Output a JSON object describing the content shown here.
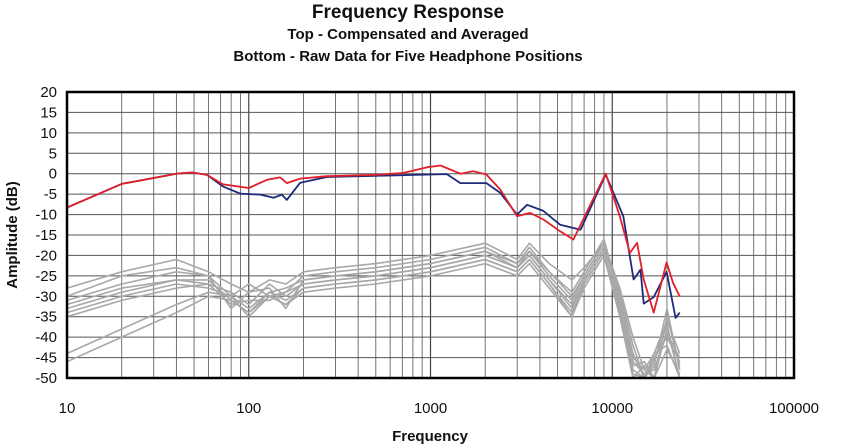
{
  "chart_data": {
    "type": "line",
    "title": "Frequency Response",
    "subtitle": [
      "Top -  Compensated and Averaged",
      "Bottom - Raw Data for Five Headphone Positions"
    ],
    "xlabel": "Frequency",
    "ylabel": "Amplitude (dB)",
    "xscale": "log",
    "xlim": [
      10,
      100000
    ],
    "ylim": [
      -50,
      20
    ],
    "xticks": [
      "10",
      "100",
      "1000",
      "10000",
      "100000"
    ],
    "yticks": [
      "20",
      "15",
      "10",
      "5",
      "0",
      "-5",
      "-10",
      "-15",
      "-20",
      "-25",
      "-30",
      "-35",
      "-40",
      "-45",
      "-50"
    ],
    "grid": true,
    "legend": "none",
    "series": [
      {
        "color": "#1f2a7a",
        "x": [
          10,
          20,
          40,
          49,
          59,
          72,
          90,
          116,
          137,
          152,
          162,
          192,
          269,
          500,
          1000,
          1230,
          1460,
          2030,
          2420,
          2990,
          3400,
          4180,
          5170,
          6700,
          9200,
          11500,
          13100,
          14300,
          14900,
          16900,
          19900,
          22300,
          23500
        ],
        "y": [
          -8.3,
          -2.5,
          0,
          0.3,
          -0.3,
          -3.1,
          -4.9,
          -5.1,
          -5.9,
          -5.1,
          -6.4,
          -2.2,
          -0.8,
          -0.5,
          -0.2,
          -0.1,
          -2.3,
          -2.3,
          -4.7,
          -10,
          -7.6,
          -9.1,
          -12.5,
          -13.7,
          -0.2,
          -10.4,
          -25.9,
          -23.5,
          -31.8,
          -30.2,
          -24,
          -35.3,
          -34
        ]
      },
      {
        "color": "#e0202a",
        "x": [
          10,
          20,
          40,
          49,
          59,
          72,
          100,
          126,
          149,
          162,
          192,
          269,
          500,
          711,
          960,
          1135,
          1460,
          1720,
          2030,
          2420,
          2990,
          3530,
          4180,
          5170,
          6110,
          7210,
          9200,
          11000,
          12500,
          13700,
          14900,
          16900,
          19900,
          21600,
          23500
        ],
        "y": [
          -8.3,
          -2.5,
          0,
          0.3,
          -0.3,
          -2.6,
          -3.5,
          -1.5,
          -0.9,
          -2.3,
          -1.2,
          -0.6,
          -0.3,
          0.2,
          1.6,
          2.0,
          0,
          0.6,
          -0.2,
          -3.9,
          -10.4,
          -9.6,
          -11.2,
          -14.1,
          -16.1,
          -9.6,
          0,
          -10.4,
          -19.4,
          -16.9,
          -25.9,
          -34,
          -21.7,
          -26.7,
          -30
        ]
      },
      {
        "color": "#a8a8a8",
        "x": [
          10,
          20,
          40,
          60,
          80,
          100,
          130,
          160,
          200,
          300,
          500,
          1000,
          2000,
          3000,
          3500,
          4500,
          6000,
          7000,
          9000,
          11000,
          13000,
          15000,
          17000,
          20000,
          23500
        ],
        "y": [
          -28,
          -24,
          -21,
          -24,
          -27,
          -29,
          -26,
          -27,
          -24,
          -23,
          -22,
          -20,
          -17,
          -21,
          -17,
          -22,
          -26,
          -23,
          -17,
          -28,
          -40,
          -48,
          -44,
          -36,
          -44
        ]
      },
      {
        "color": "#a8a8a8",
        "x": [
          10,
          20,
          40,
          60,
          80,
          100,
          130,
          160,
          200,
          300,
          500,
          1000,
          2000,
          3000,
          3500,
          4500,
          6000,
          7000,
          9000,
          11000,
          13000,
          15000,
          17000,
          20000,
          23500
        ],
        "y": [
          -30,
          -25,
          -23,
          -25,
          -30,
          -27,
          -30,
          -29,
          -25,
          -24,
          -23,
          -21,
          -18,
          -22,
          -18,
          -24,
          -29,
          -24,
          -16,
          -30,
          -44,
          -50,
          -47,
          -33,
          -48
        ]
      },
      {
        "color": "#a8a8a8",
        "x": [
          10,
          20,
          40,
          60,
          80,
          100,
          130,
          160,
          200,
          300,
          500,
          1000,
          2000,
          3000,
          3500,
          4500,
          6000,
          7000,
          9000,
          11000,
          13000,
          15000,
          17000,
          20000,
          23500
        ],
        "y": [
          -31,
          -27,
          -24,
          -25,
          -33,
          -29,
          -28,
          -33,
          -26,
          -25,
          -24,
          -22,
          -19,
          -23,
          -19,
          -25,
          -31,
          -25,
          -17,
          -32,
          -47,
          -46,
          -50,
          -38,
          -50
        ]
      },
      {
        "color": "#a8a8a8",
        "x": [
          10,
          20,
          40,
          60,
          80,
          100,
          130,
          160,
          200,
          300,
          500,
          1000,
          2000,
          3000,
          3500,
          4500,
          6000,
          7000,
          9000,
          11000,
          13000,
          15000,
          17000,
          20000,
          23500
        ],
        "y": [
          -32,
          -28,
          -26,
          -27,
          -29,
          -32,
          -27,
          -30,
          -27,
          -26,
          -25,
          -23,
          -20,
          -23,
          -20,
          -26,
          -33,
          -26,
          -18,
          -29,
          -42,
          -50,
          -45,
          -40,
          -46
        ]
      },
      {
        "color": "#a8a8a8",
        "x": [
          10,
          20,
          40,
          60,
          80,
          100,
          130,
          160,
          200,
          300,
          500,
          1000,
          2000,
          3000,
          3500,
          4500,
          6000,
          7000,
          9000,
          11000,
          13000,
          15000,
          17000,
          20000,
          23500
        ],
        "y": [
          -33,
          -29,
          -26,
          -26,
          -31,
          -34,
          -29,
          -28,
          -26,
          -25,
          -24,
          -22,
          -19,
          -22,
          -19,
          -24,
          -30,
          -25,
          -17,
          -31,
          -45,
          -48,
          -50,
          -35,
          -47
        ]
      },
      {
        "color": "#a8a8a8",
        "x": [
          10,
          20,
          40,
          60,
          80,
          100,
          130,
          160,
          200,
          300,
          500,
          1000,
          2000,
          3000,
          3500,
          4500,
          6000,
          7000,
          9000,
          11000,
          13000,
          15000,
          17000,
          20000,
          23500
        ],
        "y": [
          -34,
          -30,
          -27,
          -28,
          -30,
          -35,
          -30,
          -32,
          -28,
          -27,
          -26,
          -24,
          -21,
          -24,
          -21,
          -27,
          -35,
          -27,
          -19,
          -33,
          -48,
          -50,
          -46,
          -37,
          -50
        ]
      },
      {
        "color": "#a8a8a8",
        "x": [
          10,
          20,
          40,
          60,
          80,
          100,
          130,
          160,
          200,
          300,
          500,
          1000,
          2000,
          3000,
          3500,
          4500,
          6000,
          7000,
          9000,
          11000,
          13000,
          15000,
          17000,
          20000,
          23500
        ],
        "y": [
          -35,
          -31,
          -28,
          -27,
          -32,
          -31,
          -31,
          -29,
          -27,
          -26,
          -25,
          -23,
          -20,
          -23,
          -20,
          -26,
          -32,
          -26,
          -18,
          -30,
          -46,
          -49,
          -48,
          -39,
          -45
        ]
      },
      {
        "color": "#a8a8a8",
        "x": [
          10,
          20,
          40,
          60,
          80,
          100,
          130,
          160,
          200,
          300,
          500,
          1000,
          2000,
          3000,
          3500,
          4500,
          6000,
          7000,
          9000,
          11000,
          13000,
          15000,
          17000,
          20000,
          23500
        ],
        "y": [
          -44,
          -38,
          -32,
          -29,
          -30,
          -33,
          -29,
          -31,
          -28,
          -27,
          -26,
          -24,
          -21,
          -24,
          -21,
          -27,
          -34,
          -27,
          -19,
          -34,
          -49,
          -50,
          -44,
          -42,
          -50
        ]
      },
      {
        "color": "#a8a8a8",
        "x": [
          10,
          20,
          40,
          60,
          80,
          100,
          130,
          160,
          200,
          300,
          500,
          1000,
          2000,
          3000,
          3500,
          4500,
          6000,
          7000,
          9000,
          11000,
          13000,
          15000,
          17000,
          20000,
          23500
        ],
        "y": [
          -46,
          -40,
          -34,
          -30,
          -31,
          -34,
          -30,
          -32,
          -29,
          -28,
          -27,
          -25,
          -22,
          -25,
          -22,
          -28,
          -35,
          -28,
          -20,
          -35,
          -50,
          -47,
          -50,
          -43,
          -49
        ]
      }
    ]
  }
}
